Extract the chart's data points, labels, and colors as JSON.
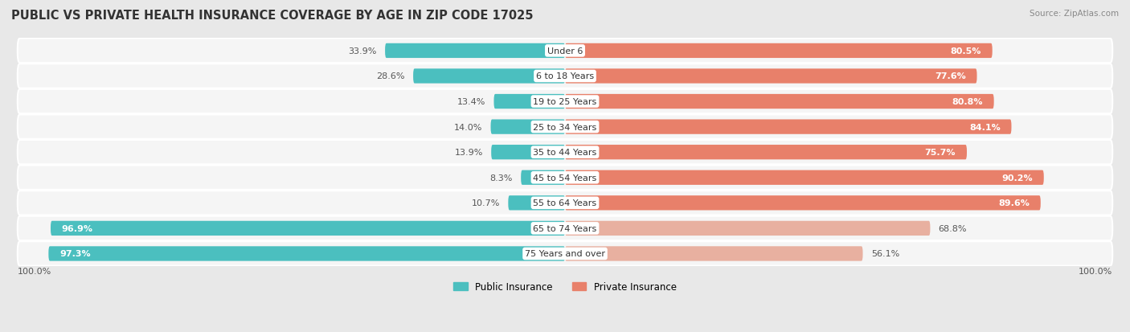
{
  "title": "PUBLIC VS PRIVATE HEALTH INSURANCE COVERAGE BY AGE IN ZIP CODE 17025",
  "source": "Source: ZipAtlas.com",
  "categories": [
    "Under 6",
    "6 to 18 Years",
    "19 to 25 Years",
    "25 to 34 Years",
    "35 to 44 Years",
    "45 to 54 Years",
    "55 to 64 Years",
    "65 to 74 Years",
    "75 Years and over"
  ],
  "public_values": [
    33.9,
    28.6,
    13.4,
    14.0,
    13.9,
    8.3,
    10.7,
    96.9,
    97.3
  ],
  "private_values": [
    80.5,
    77.6,
    80.8,
    84.1,
    75.7,
    90.2,
    89.6,
    68.8,
    56.1
  ],
  "public_color": "#4bbfbf",
  "private_color": "#e8806a",
  "public_label": "Public Insurance",
  "private_label": "Private Insurance",
  "axis_label_left": "100.0%",
  "axis_label_right": "100.0%",
  "bg_color": "#e8e8e8",
  "row_bg_color": "#f5f5f5",
  "title_fontsize": 10.5,
  "label_fontsize": 8.0,
  "value_fontsize": 8.0,
  "bar_height": 0.58,
  "max_value": 100.0
}
